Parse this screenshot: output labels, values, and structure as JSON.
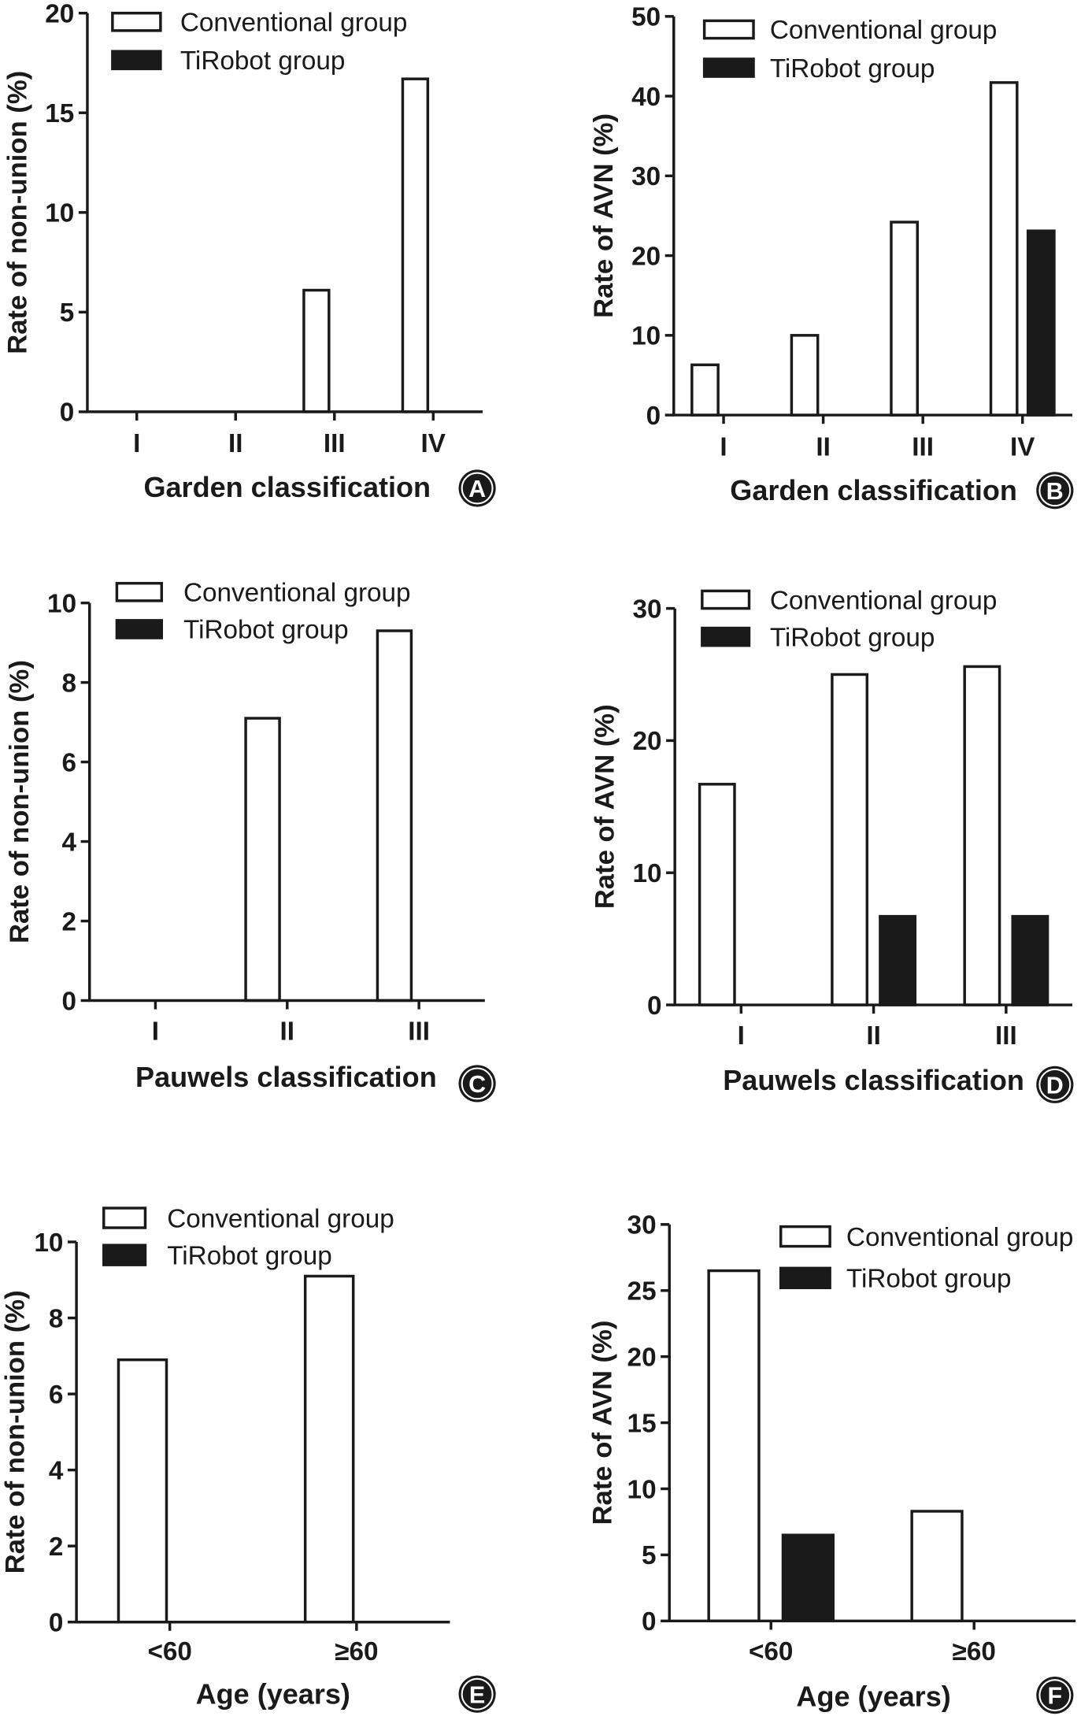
{
  "colors": {
    "ink": "#1a1a1a",
    "background": "#ffffff"
  },
  "chart_data": [
    {
      "panel": "A",
      "type": "bar",
      "categories": [
        "I",
        "II",
        "III",
        "IV"
      ],
      "series": [
        {
          "name": "Conventional group",
          "fill": "#ffffff",
          "values": [
            0,
            0,
            6.1,
            16.7
          ]
        },
        {
          "name": "TiRobot group",
          "fill": "#1a1a1a",
          "values": [
            0,
            0,
            0,
            0
          ]
        }
      ],
      "xlabel": "Garden classification",
      "ylabel": "Rate of non-union (%)",
      "ylim": [
        0,
        20
      ],
      "yticks": [
        0,
        5,
        10,
        15,
        20
      ],
      "grid": false,
      "legend": "top-left"
    },
    {
      "panel": "B",
      "type": "bar",
      "categories": [
        "I",
        "II",
        "III",
        "IV"
      ],
      "series": [
        {
          "name": "Conventional group",
          "fill": "#ffffff",
          "values": [
            6.3,
            10.0,
            24.2,
            41.7
          ]
        },
        {
          "name": "TiRobot group",
          "fill": "#1a1a1a",
          "values": [
            0,
            0,
            0,
            23.1
          ]
        }
      ],
      "xlabel": "Garden classification",
      "ylabel": "Rate of AVN (%)",
      "ylim": [
        0,
        50
      ],
      "yticks": [
        0,
        10,
        20,
        30,
        40,
        50
      ],
      "grid": false,
      "legend": "top-left"
    },
    {
      "panel": "C",
      "type": "bar",
      "categories": [
        "I",
        "II",
        "III"
      ],
      "series": [
        {
          "name": "Conventional group",
          "fill": "#ffffff",
          "values": [
            0,
            7.1,
            9.3
          ]
        },
        {
          "name": "TiRobot group",
          "fill": "#1a1a1a",
          "values": [
            0,
            0,
            0
          ]
        }
      ],
      "xlabel": "Pauwels classification",
      "ylabel": "Rate of non-union (%)",
      "ylim": [
        0,
        10
      ],
      "yticks": [
        0,
        2,
        4,
        6,
        8,
        10
      ],
      "grid": false,
      "legend": "top-left"
    },
    {
      "panel": "D",
      "type": "bar",
      "categories": [
        "I",
        "II",
        "III"
      ],
      "series": [
        {
          "name": "Conventional group",
          "fill": "#ffffff",
          "values": [
            16.7,
            25.0,
            25.6
          ]
        },
        {
          "name": "TiRobot group",
          "fill": "#1a1a1a",
          "values": [
            0,
            6.7,
            6.7
          ]
        }
      ],
      "xlabel": "Pauwels classification",
      "ylabel": "Rate of AVN (%)",
      "ylim": [
        0,
        30
      ],
      "yticks": [
        0,
        10,
        20,
        30
      ],
      "grid": false,
      "legend": "top-left"
    },
    {
      "panel": "E",
      "type": "bar",
      "categories": [
        "<60",
        "≥60"
      ],
      "series": [
        {
          "name": "Conventional group",
          "fill": "#ffffff",
          "values": [
            6.9,
            9.1
          ]
        },
        {
          "name": "TiRobot group",
          "fill": "#1a1a1a",
          "values": [
            0,
            0
          ]
        }
      ],
      "xlabel": "Age (years)",
      "ylabel": "Rate of non-union (%)",
      "ylim": [
        0,
        10
      ],
      "yticks": [
        0,
        2,
        4,
        6,
        8,
        10
      ],
      "grid": false,
      "legend": "top-left"
    },
    {
      "panel": "F",
      "type": "bar",
      "categories": [
        "<60",
        "≥60"
      ],
      "series": [
        {
          "name": "Conventional group",
          "fill": "#ffffff",
          "values": [
            26.5,
            8.3
          ]
        },
        {
          "name": "TiRobot group",
          "fill": "#1a1a1a",
          "values": [
            6.5,
            0
          ]
        }
      ],
      "xlabel": "Age (years)",
      "ylabel": "Rate of AVN (%)",
      "ylim": [
        0,
        30
      ],
      "yticks": [
        0,
        5,
        10,
        15,
        20,
        25,
        30
      ],
      "grid": false,
      "legend": "top-right"
    }
  ]
}
